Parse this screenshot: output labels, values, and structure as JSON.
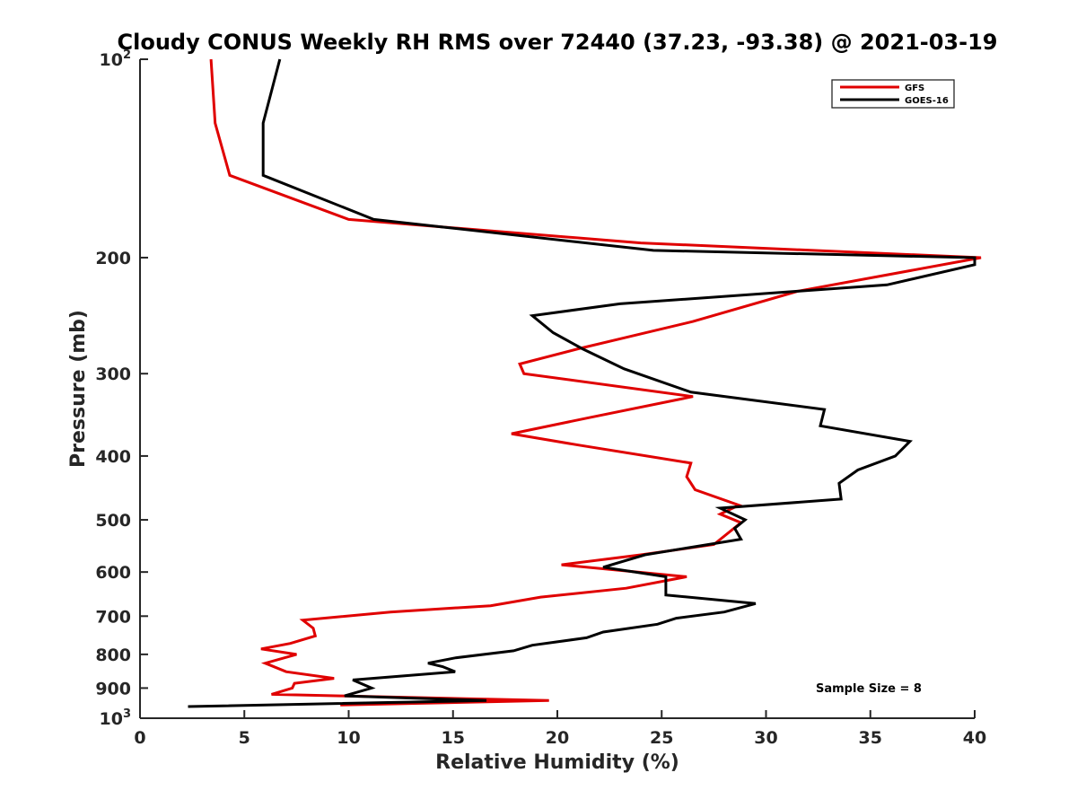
{
  "chart_data": {
    "type": "line",
    "title": "Cloudy CONUS Weekly RH RMS over 72440 (37.23, -93.38) @ 2021-03-19",
    "xlabel": "Relative Humidity (%)",
    "ylabel": "Pressure (mb)",
    "xlim": [
      0,
      40
    ],
    "ylim": [
      100,
      1000
    ],
    "y_scale": "log",
    "y_reversed": true,
    "grid": false,
    "legend_position": "top-right",
    "x_ticks": [
      "0",
      "5",
      "10",
      "15",
      "20",
      "25",
      "30",
      "35",
      "40"
    ],
    "y_ticks": [
      {
        "value": 100,
        "base": "10",
        "exp": "2"
      },
      {
        "value": 200,
        "label": "200"
      },
      {
        "value": 300,
        "label": "300"
      },
      {
        "value": 400,
        "label": "400"
      },
      {
        "value": 500,
        "label": "500"
      },
      {
        "value": 600,
        "label": "600"
      },
      {
        "value": 700,
        "label": "700"
      },
      {
        "value": 800,
        "label": "800"
      },
      {
        "value": 900,
        "label": "900"
      },
      {
        "value": 1000,
        "base": "10",
        "exp": "3"
      }
    ],
    "annotation": "Sample Size = 8",
    "series": [
      {
        "name": "GFS",
        "color": "#e00000",
        "points": [
          [
            3.4,
            100
          ],
          [
            3.6,
            125
          ],
          [
            4.3,
            150
          ],
          [
            10.0,
            175
          ],
          [
            24.0,
            190
          ],
          [
            40.3,
            200
          ],
          [
            31.5,
            225
          ],
          [
            26.5,
            250
          ],
          [
            21.0,
            275
          ],
          [
            18.2,
            290
          ],
          [
            18.4,
            300
          ],
          [
            26.5,
            325
          ],
          [
            21.5,
            350
          ],
          [
            17.8,
            370
          ],
          [
            21.0,
            385
          ],
          [
            26.4,
            410
          ],
          [
            26.2,
            430
          ],
          [
            26.6,
            450
          ],
          [
            28.7,
            475
          ],
          [
            27.8,
            490
          ],
          [
            28.8,
            505
          ],
          [
            27.5,
            545
          ],
          [
            24.0,
            565
          ],
          [
            20.2,
            585
          ],
          [
            26.2,
            610
          ],
          [
            23.3,
            635
          ],
          [
            19.2,
            655
          ],
          [
            16.8,
            675
          ],
          [
            12.0,
            690
          ],
          [
            7.8,
            710
          ],
          [
            8.3,
            730
          ],
          [
            8.4,
            750
          ],
          [
            7.2,
            770
          ],
          [
            5.8,
            785
          ],
          [
            7.5,
            800
          ],
          [
            6.0,
            825
          ],
          [
            7.0,
            850
          ],
          [
            9.3,
            870
          ],
          [
            7.4,
            885
          ],
          [
            7.3,
            900
          ],
          [
            6.3,
            920
          ],
          [
            9.6,
            925
          ],
          [
            19.6,
            940
          ],
          [
            9.6,
            955
          ]
        ]
      },
      {
        "name": "GOES-16",
        "color": "#000000",
        "points": [
          [
            6.7,
            100
          ],
          [
            5.9,
            125
          ],
          [
            5.9,
            150
          ],
          [
            11.2,
            175
          ],
          [
            24.6,
            195
          ],
          [
            40.0,
            200
          ],
          [
            40.0,
            205
          ],
          [
            35.8,
            220
          ],
          [
            23.0,
            235
          ],
          [
            18.8,
            245
          ],
          [
            19.8,
            260
          ],
          [
            21.2,
            275
          ],
          [
            23.2,
            295
          ],
          [
            26.4,
            320
          ],
          [
            32.8,
            340
          ],
          [
            32.6,
            360
          ],
          [
            36.9,
            380
          ],
          [
            36.2,
            400
          ],
          [
            34.4,
            420
          ],
          [
            33.5,
            440
          ],
          [
            33.6,
            465
          ],
          [
            27.8,
            480
          ],
          [
            29.0,
            500
          ],
          [
            28.5,
            515
          ],
          [
            28.8,
            535
          ],
          [
            24.2,
            565
          ],
          [
            22.2,
            590
          ],
          [
            25.2,
            610
          ],
          [
            25.2,
            650
          ],
          [
            29.5,
            670
          ],
          [
            28.0,
            690
          ],
          [
            25.7,
            705
          ],
          [
            24.8,
            720
          ],
          [
            22.2,
            740
          ],
          [
            21.4,
            755
          ],
          [
            18.8,
            775
          ],
          [
            17.9,
            790
          ],
          [
            15.1,
            810
          ],
          [
            13.8,
            825
          ],
          [
            14.5,
            835
          ],
          [
            15.1,
            850
          ],
          [
            10.2,
            875
          ],
          [
            11.1,
            900
          ],
          [
            9.8,
            925
          ],
          [
            16.6,
            940
          ],
          [
            2.3,
            960
          ]
        ]
      }
    ]
  }
}
